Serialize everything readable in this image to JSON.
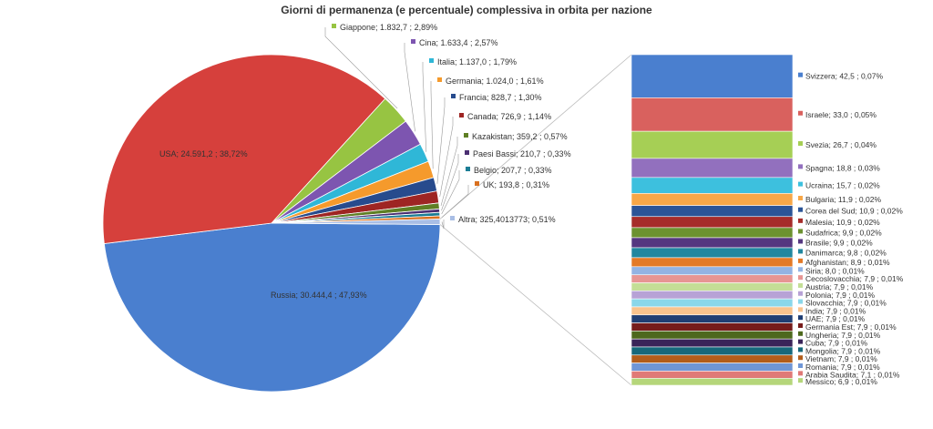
{
  "chart_data": {
    "type": "pie",
    "title": "Giorni di permanenza (e percentuale) complessiva in orbita per nazione",
    "slices": [
      {
        "name": "Russia",
        "label": "Russia; 30.444,4 ; 47,93%",
        "value": 30444.4,
        "percent": 47.93,
        "color": "#4a7fcf"
      },
      {
        "name": "USA",
        "label": "USA; 24.591,2 ; 38,72%",
        "value": 24591.2,
        "percent": 38.72,
        "color": "#d6403c"
      },
      {
        "name": "Giappone",
        "label": "Giappone; 1.832,7 ; 2,89%",
        "value": 1832.7,
        "percent": 2.89,
        "color": "#97c442"
      },
      {
        "name": "Cina",
        "label": "Cina; 1.633,4 ; 2,57%",
        "value": 1633.4,
        "percent": 2.57,
        "color": "#7d55b0"
      },
      {
        "name": "Italia",
        "label": "Italia; 1.137,0 ; 1,79%",
        "value": 1137.0,
        "percent": 1.79,
        "color": "#2fb7d7"
      },
      {
        "name": "Germania",
        "label": "Germania; 1.024,0 ; 1,61%",
        "value": 1024.0,
        "percent": 1.61,
        "color": "#f59a2c"
      },
      {
        "name": "Francia",
        "label": "Francia; 828,7 ; 1,30%",
        "value": 828.7,
        "percent": 1.3,
        "color": "#274b8d"
      },
      {
        "name": "Canada",
        "label": "Canada; 726,9 ; 1,14%",
        "value": 726.9,
        "percent": 1.14,
        "color": "#9e2523"
      },
      {
        "name": "Kazakistan",
        "label": "Kazakistan; 359,2 ; 0,57%",
        "value": 359.2,
        "percent": 0.57,
        "color": "#5f7f24"
      },
      {
        "name": "Paesi Bassi",
        "label": "Paesi Bassi; 210,7 ; 0,33%",
        "value": 210.7,
        "percent": 0.33,
        "color": "#4b2f72"
      },
      {
        "name": "Belgio",
        "label": "Belgio; 207,7 ; 0,33%",
        "value": 207.7,
        "percent": 0.33,
        "color": "#1b7d95"
      },
      {
        "name": "UK",
        "label": "UK; 193,8 ; 0,31%",
        "value": 193.8,
        "percent": 0.31,
        "color": "#d9701f"
      },
      {
        "name": "Altra",
        "label": "Altra; 325,4013773; 0,51%",
        "value": 325.4013773,
        "percent": 0.51,
        "color": "#a9bee5"
      }
    ],
    "breakdown": [
      {
        "name": "Svizzera",
        "label": "Svizzera; 42,5 ; 0,07%",
        "value": 42.5,
        "percent": 0.07,
        "color": "#4a7fcf"
      },
      {
        "name": "Israele",
        "label": "Israele; 33,0 ; 0,05%",
        "value": 33.0,
        "percent": 0.05,
        "color": "#d9615e"
      },
      {
        "name": "Svezia",
        "label": "Svezia; 26,7 ; 0,04%",
        "value": 26.7,
        "percent": 0.04,
        "color": "#a6cf55"
      },
      {
        "name": "Spagna",
        "label": "Spagna; 18,8 ; 0,03%",
        "value": 18.8,
        "percent": 0.03,
        "color": "#9270be"
      },
      {
        "name": "Ucraina",
        "label": "Ucraina; 15,7 ; 0,02%",
        "value": 15.7,
        "percent": 0.02,
        "color": "#3dc0de"
      },
      {
        "name": "Bulgaria",
        "label": "Bulgaria; 11,9 ; 0,02%",
        "value": 11.9,
        "percent": 0.02,
        "color": "#f7a748"
      },
      {
        "name": "Corea del Sud",
        "label": "Corea del Sud; 10,9 ; 0,02%",
        "value": 10.9,
        "percent": 0.02,
        "color": "#2b5497"
      },
      {
        "name": "Malesia",
        "label": "Malesia; 10,9 ; 0,02%",
        "value": 10.9,
        "percent": 0.02,
        "color": "#a62c2a"
      },
      {
        "name": "Sudafrica",
        "label": "Sudafrica; 9,9 ; 0,02%",
        "value": 9.9,
        "percent": 0.02,
        "color": "#6c9230"
      },
      {
        "name": "Brasile",
        "label": "Brasile; 9,9 ; 0,02%",
        "value": 9.9,
        "percent": 0.02,
        "color": "#553780"
      },
      {
        "name": "Danimarca",
        "label": "Danimarca; 9,8 ; 0,02%",
        "value": 9.8,
        "percent": 0.02,
        "color": "#21879f"
      },
      {
        "name": "Afghanistan",
        "label": "Afghanistan; 8,9 ; 0,01%",
        "value": 8.9,
        "percent": 0.01,
        "color": "#e37a27"
      },
      {
        "name": "Siria",
        "label": "Siria; 8,0 ; 0,01%",
        "value": 8.0,
        "percent": 0.01,
        "color": "#93b3e3"
      },
      {
        "name": "Cecoslovacchia",
        "label": "Cecoslovacchia; 7,9 ; 0,01%",
        "value": 7.9,
        "percent": 0.01,
        "color": "#e79593"
      },
      {
        "name": "Austria",
        "label": "Austria; 7,9 ; 0,01%",
        "value": 7.9,
        "percent": 0.01,
        "color": "#c4de96"
      },
      {
        "name": "Polonia",
        "label": "Polonia; 7,9 ; 0,01%",
        "value": 7.9,
        "percent": 0.01,
        "color": "#b7a2d6"
      },
      {
        "name": "Slovacchia",
        "label": "Slovacchia; 7,9 ; 0,01%",
        "value": 7.9,
        "percent": 0.01,
        "color": "#8ad7ea"
      },
      {
        "name": "India",
        "label": "India; 7,9 ; 0,01%",
        "value": 7.9,
        "percent": 0.01,
        "color": "#f8c38d"
      },
      {
        "name": "UAE",
        "label": "UAE; 7,9 ; 0,01%",
        "value": 7.9,
        "percent": 0.01,
        "color": "#1f3e73"
      },
      {
        "name": "Germania Est",
        "label": "Germania Est; 7,9 ; 0,01%",
        "value": 7.9,
        "percent": 0.01,
        "color": "#761c1b"
      },
      {
        "name": "Ungheria",
        "label": "Ungheria; 7,9 ; 0,01%",
        "value": 7.9,
        "percent": 0.01,
        "color": "#4d681d"
      },
      {
        "name": "Cuba",
        "label": "Cuba; 7,9 ; 0,01%",
        "value": 7.9,
        "percent": 0.01,
        "color": "#3a2459"
      },
      {
        "name": "Mongolia",
        "label": "Mongolia; 7,9 ; 0,01%",
        "value": 7.9,
        "percent": 0.01,
        "color": "#16687b"
      },
      {
        "name": "Vietnam",
        "label": "Vietnam; 7,9 ; 0,01%",
        "value": 7.9,
        "percent": 0.01,
        "color": "#b25d1b"
      },
      {
        "name": "Romania",
        "label": "Romania; 7,9 ; 0,01%",
        "value": 7.9,
        "percent": 0.01,
        "color": "#6f96d6"
      },
      {
        "name": "Arabia Saudita",
        "label": "Arabia Saudita; 7,1 ; 0,01%",
        "value": 7.1,
        "percent": 0.01,
        "color": "#e07a77"
      },
      {
        "name": "Messico",
        "label": "Messico; 6,9 ; 0,01%",
        "value": 6.9,
        "percent": 0.01,
        "color": "#b5d67a"
      }
    ]
  }
}
